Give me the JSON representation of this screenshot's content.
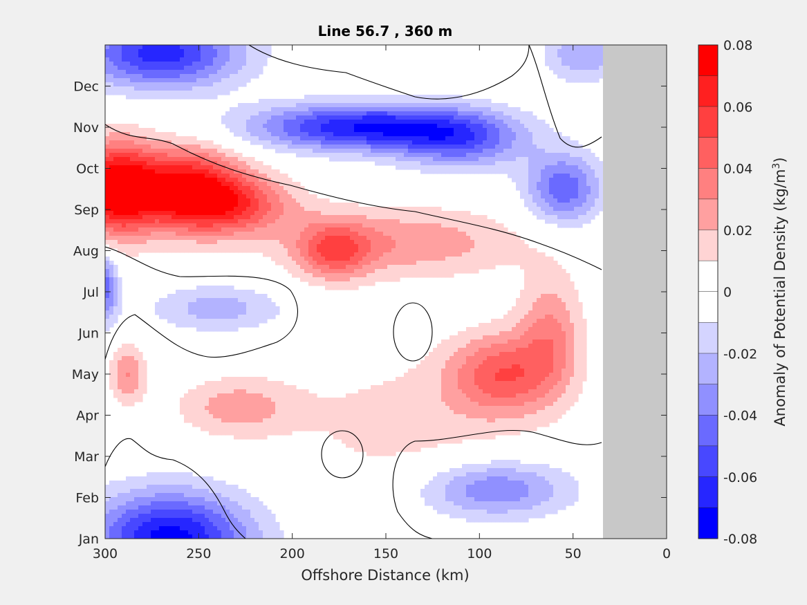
{
  "chart_data": {
    "type": "heatmap",
    "title": "Line 56.7 , 360 m",
    "xlabel": "Offshore Distance (km)",
    "x_range": [
      300,
      0
    ],
    "x_ticks": [
      300,
      250,
      200,
      150,
      100,
      50,
      0
    ],
    "y_categories": [
      "Jan",
      "Feb",
      "Mar",
      "Apr",
      "May",
      "Jun",
      "Jul",
      "Aug",
      "Sep",
      "Oct",
      "Nov",
      "Dec"
    ],
    "land_mask_km": [
      0,
      34
    ],
    "land_color": "#c8c8c8",
    "zero_contour": true,
    "colorbar": {
      "label_main": "Anomaly of Potential Density (kg/m",
      "label_sup": "3",
      "label_close": ")",
      "range": [
        -0.08,
        0.08
      ],
      "tick_values": [
        0.08,
        0.06,
        0.04,
        0.02,
        0,
        -0.02,
        -0.04,
        -0.06,
        -0.08
      ],
      "tick_labels": [
        "0.08",
        "0.06",
        "0.04",
        "0.02",
        "0",
        "-0.02",
        "-0.04",
        "-0.06",
        "-0.08"
      ],
      "levels": [
        {
          "min": 0.07,
          "max": 0.08,
          "color": "#ff0000"
        },
        {
          "min": 0.06,
          "max": 0.07,
          "color": "#ff2020"
        },
        {
          "min": 0.05,
          "max": 0.06,
          "color": "#ff4040"
        },
        {
          "min": 0.04,
          "max": 0.05,
          "color": "#ff6060"
        },
        {
          "min": 0.03,
          "max": 0.04,
          "color": "#ff8080"
        },
        {
          "min": 0.02,
          "max": 0.03,
          "color": "#ffa0a0"
        },
        {
          "min": 0.01,
          "max": 0.02,
          "color": "#ffd4d4"
        },
        {
          "min": 0.0,
          "max": 0.01,
          "color": "#ffffff"
        },
        {
          "min": -0.01,
          "max": 0.0,
          "color": "#ffffff"
        },
        {
          "min": -0.02,
          "max": -0.01,
          "color": "#d4d4ff"
        },
        {
          "min": -0.03,
          "max": -0.02,
          "color": "#b3b3ff"
        },
        {
          "min": -0.04,
          "max": -0.03,
          "color": "#9090ff"
        },
        {
          "min": -0.05,
          "max": -0.04,
          "color": "#6a6aff"
        },
        {
          "min": -0.06,
          "max": -0.05,
          "color": "#4848ff"
        },
        {
          "min": -0.07,
          "max": -0.06,
          "color": "#2626ff"
        },
        {
          "min": -0.08,
          "max": -0.07,
          "color": "#0000ff"
        }
      ]
    },
    "anomaly_features": [
      {
        "x": 295,
        "y": 8.5,
        "v": 0.075,
        "sx": 14,
        "sy": 0.8
      },
      {
        "x": 258,
        "y": 8.5,
        "v": 0.075,
        "sx": 22,
        "sy": 0.7
      },
      {
        "x": 230,
        "y": 8.1,
        "v": 0.042,
        "sx": 22,
        "sy": 0.5
      },
      {
        "x": 178,
        "y": 7.0,
        "v": 0.04,
        "sx": 14,
        "sy": 0.5
      },
      {
        "x": 140,
        "y": 7.2,
        "v": 0.028,
        "sx": 45,
        "sy": 0.6
      },
      {
        "x": 88,
        "y": 4.0,
        "v": 0.045,
        "sx": 20,
        "sy": 0.7
      },
      {
        "x": 62,
        "y": 5.0,
        "v": 0.03,
        "sx": 12,
        "sy": 1.0
      },
      {
        "x": 288,
        "y": 4.0,
        "v": 0.03,
        "sx": 7,
        "sy": 0.5
      },
      {
        "x": 230,
        "y": 3.2,
        "v": 0.025,
        "sx": 22,
        "sy": 0.5
      },
      {
        "x": 140,
        "y": 2.8,
        "v": 0.014,
        "sx": 45,
        "sy": 1.2
      },
      {
        "x": 270,
        "y": 11.8,
        "v": -0.065,
        "sx": 30,
        "sy": 0.6
      },
      {
        "x": 165,
        "y": 10.0,
        "v": -0.068,
        "sx": 40,
        "sy": 0.4
      },
      {
        "x": 110,
        "y": 9.7,
        "v": -0.045,
        "sx": 25,
        "sy": 0.5
      },
      {
        "x": 55,
        "y": 8.5,
        "v": -0.048,
        "sx": 14,
        "sy": 0.6
      },
      {
        "x": 45,
        "y": 11.8,
        "v": -0.03,
        "sx": 14,
        "sy": 0.5
      },
      {
        "x": 240,
        "y": 5.6,
        "v": -0.025,
        "sx": 25,
        "sy": 0.4
      },
      {
        "x": 300,
        "y": 6.1,
        "v": -0.045,
        "sx": 5,
        "sy": 0.6
      },
      {
        "x": 92,
        "y": 1.2,
        "v": -0.04,
        "sx": 28,
        "sy": 0.5
      },
      {
        "x": 265,
        "y": 0.0,
        "v": -0.075,
        "sx": 30,
        "sy": 0.8
      }
    ]
  }
}
